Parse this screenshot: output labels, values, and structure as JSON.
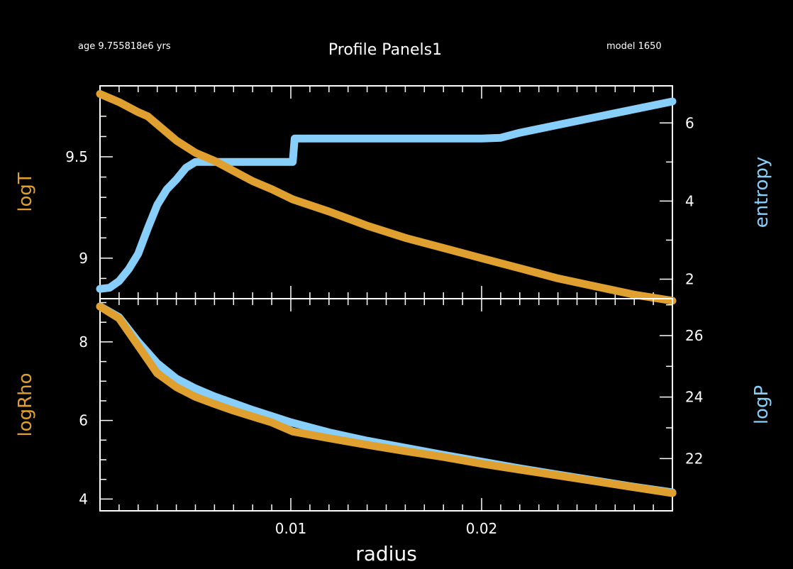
{
  "header": {
    "age": "age 9.755818e6 yrs",
    "title": "Profile Panels1",
    "model": "model 1650"
  },
  "colors": {
    "background": "#000000",
    "axes": "#ffffff",
    "left_series": "#e0a030",
    "right_series": "#87cefa"
  },
  "chart_data": [
    {
      "type": "line",
      "panel": "top",
      "xlabel": "",
      "xlim": [
        0,
        0.03
      ],
      "x_ticks": [
        0.01,
        0.02
      ],
      "left_axis": {
        "label": "logT",
        "lim": [
          8.8,
          9.85
        ],
        "ticks": [
          "9",
          "9.5"
        ],
        "tick_values": [
          9,
          9.5
        ]
      },
      "right_axis": {
        "label": "entropy",
        "lim": [
          1.5,
          6.95
        ],
        "ticks": [
          "2",
          "4",
          "6"
        ],
        "tick_values": [
          2,
          4,
          6
        ]
      },
      "series": [
        {
          "name": "logT",
          "axis": "left",
          "color": "#e0a030",
          "x": [
            0,
            0.001,
            0.002,
            0.0025,
            0.003,
            0.004,
            0.005,
            0.006,
            0.007,
            0.008,
            0.009,
            0.0101,
            0.012,
            0.014,
            0.016,
            0.018,
            0.02,
            0.022,
            0.024,
            0.026,
            0.028,
            0.03
          ],
          "y": [
            9.81,
            9.77,
            9.72,
            9.7,
            9.66,
            9.58,
            9.52,
            9.48,
            9.43,
            9.38,
            9.34,
            9.29,
            9.23,
            9.16,
            9.1,
            9.05,
            9.0,
            8.95,
            8.9,
            8.86,
            8.82,
            8.79
          ]
        },
        {
          "name": "entropy",
          "axis": "right",
          "color": "#87cefa",
          "x": [
            0,
            0.0005,
            0.001,
            0.0015,
            0.002,
            0.0025,
            0.003,
            0.0035,
            0.004,
            0.0045,
            0.005,
            0.0055,
            0.006,
            0.007,
            0.008,
            0.009,
            0.01,
            0.0101,
            0.0102,
            0.012,
            0.014,
            0.016,
            0.018,
            0.02,
            0.021,
            0.022,
            0.024,
            0.026,
            0.028,
            0.03
          ],
          "y": [
            1.75,
            1.78,
            1.95,
            2.25,
            2.65,
            3.3,
            3.9,
            4.3,
            4.55,
            4.85,
            5.0,
            5.0,
            5.0,
            5.0,
            5.0,
            5.0,
            5.0,
            5.0,
            5.6,
            5.6,
            5.6,
            5.6,
            5.6,
            5.6,
            5.62,
            5.75,
            5.95,
            6.15,
            6.35,
            6.55
          ]
        }
      ]
    },
    {
      "type": "line",
      "panel": "bottom",
      "xlabel": "radius",
      "xlim": [
        0,
        0.03
      ],
      "x_ticks": [
        0.01,
        0.02
      ],
      "x_tick_labels": [
        "0.01",
        "0.02"
      ],
      "left_axis": {
        "label": "logRho",
        "lim": [
          3.7,
          9.1
        ],
        "ticks": [
          "4",
          "6",
          "8"
        ],
        "tick_values": [
          4,
          6,
          8
        ]
      },
      "right_axis": {
        "label": "logP",
        "lim": [
          20.3,
          27.2
        ],
        "ticks": [
          "22",
          "24",
          "26"
        ],
        "tick_values": [
          22,
          24,
          26
        ]
      },
      "series": [
        {
          "name": "logRho",
          "axis": "left",
          "color": "#e0a030",
          "x": [
            0,
            0.001,
            0.002,
            0.003,
            0.004,
            0.005,
            0.006,
            0.007,
            0.008,
            0.009,
            0.0101,
            0.012,
            0.014,
            0.016,
            0.018,
            0.02,
            0.022,
            0.024,
            0.026,
            0.028,
            0.03
          ],
          "y": [
            8.9,
            8.6,
            7.9,
            7.2,
            6.85,
            6.6,
            6.42,
            6.25,
            6.1,
            5.95,
            5.72,
            5.55,
            5.38,
            5.22,
            5.07,
            4.9,
            4.75,
            4.6,
            4.45,
            4.3,
            4.15
          ]
        },
        {
          "name": "logP",
          "axis": "right",
          "color": "#87cefa",
          "x": [
            0,
            0.001,
            0.002,
            0.003,
            0.004,
            0.005,
            0.006,
            0.007,
            0.008,
            0.009,
            0.01,
            0.012,
            0.014,
            0.016,
            0.018,
            0.02,
            0.022,
            0.024,
            0.026,
            0.028,
            0.03
          ],
          "y": [
            26.95,
            26.6,
            25.8,
            25.1,
            24.6,
            24.28,
            24.02,
            23.8,
            23.58,
            23.38,
            23.18,
            22.85,
            22.58,
            22.35,
            22.12,
            21.9,
            21.68,
            21.48,
            21.28,
            21.08,
            20.9
          ]
        }
      ]
    }
  ]
}
